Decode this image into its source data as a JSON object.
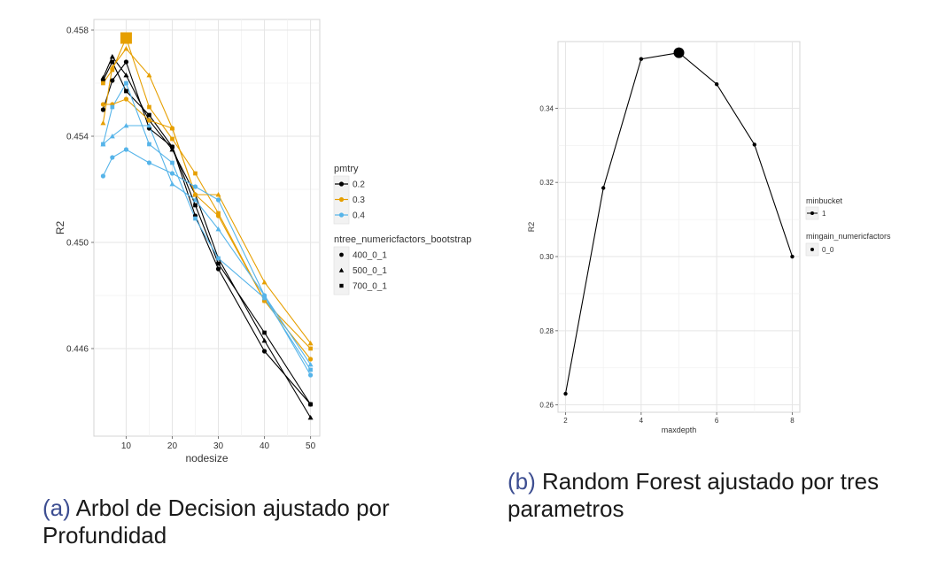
{
  "figure_a": {
    "caption_letter": "(a)",
    "caption_text": "Arbol de Decision ajustado por Profundidad"
  },
  "figure_b": {
    "caption_letter": "(b)",
    "caption_text": "Random Forest ajustado por tres parametros"
  },
  "chart_data": [
    {
      "type": "line",
      "title": "",
      "xlabel": "nodesize",
      "ylabel": "R2",
      "xlim": [
        3,
        52
      ],
      "ylim": [
        0.4427,
        0.4584
      ],
      "x_ticks": [
        10,
        20,
        30,
        40,
        50
      ],
      "y_ticks": [
        0.446,
        0.45,
        0.454,
        0.458
      ],
      "grid": true,
      "x": [
        5,
        7,
        10,
        15,
        20,
        25,
        30,
        40,
        50
      ],
      "color_legend_title": "pmtry",
      "color_legend": [
        {
          "label": "0.2",
          "color": "#000000"
        },
        {
          "label": "0.3",
          "color": "#e69f00"
        },
        {
          "label": "0.4",
          "color": "#56b4e9"
        }
      ],
      "shape_legend_title": "ntree_numericfactors_bootstrap",
      "shape_legend": [
        {
          "label": "400_0_1",
          "shape": "circle"
        },
        {
          "label": "500_0_1",
          "shape": "triangle"
        },
        {
          "label": "700_0_1",
          "shape": "square"
        }
      ],
      "legend_position": "right",
      "highlight": {
        "x": 10,
        "y": 0.4577,
        "color": "#e69f00",
        "shape": "square"
      },
      "series": [
        {
          "color": "#000000",
          "shape": "circle",
          "values": [
            0.455,
            0.4561,
            0.4568,
            0.4543,
            0.4536,
            0.451,
            0.449,
            0.4459,
            0.4439
          ]
        },
        {
          "color": "#000000",
          "shape": "triangle",
          "values": [
            0.4562,
            0.457,
            0.4563,
            0.4546,
            0.4535,
            0.4518,
            0.4494,
            0.4463,
            0.4434
          ]
        },
        {
          "color": "#000000",
          "shape": "square",
          "values": [
            0.4561,
            0.4568,
            0.4557,
            0.4548,
            0.4536,
            0.4514,
            0.4492,
            0.4466,
            0.4439
          ]
        },
        {
          "color": "#e69f00",
          "shape": "circle",
          "values": [
            0.4552,
            0.4552,
            0.4554,
            0.4546,
            0.4543,
            0.4518,
            0.451,
            0.4478,
            0.4456
          ]
        },
        {
          "color": "#e69f00",
          "shape": "triangle",
          "values": [
            0.4545,
            0.4566,
            0.4573,
            0.4563,
            0.4543,
            0.4518,
            0.4518,
            0.4485,
            0.4462
          ]
        },
        {
          "color": "#e69f00",
          "shape": "square",
          "values": [
            0.456,
            0.4565,
            0.4577,
            0.4551,
            0.4539,
            0.4526,
            0.4511,
            0.4478,
            0.446
          ]
        },
        {
          "color": "#56b4e9",
          "shape": "circle",
          "values": [
            0.4525,
            0.4532,
            0.4535,
            0.453,
            0.4526,
            0.4521,
            0.4516,
            0.448,
            0.445
          ]
        },
        {
          "color": "#56b4e9",
          "shape": "triangle",
          "values": [
            0.4537,
            0.454,
            0.4544,
            0.4544,
            0.4522,
            0.4516,
            0.4505,
            0.448,
            0.4454
          ]
        },
        {
          "color": "#56b4e9",
          "shape": "square",
          "values": [
            0.4537,
            0.4551,
            0.456,
            0.4537,
            0.453,
            0.4509,
            0.4494,
            0.4479,
            0.4452
          ]
        }
      ]
    },
    {
      "type": "line",
      "title": "",
      "xlabel": "maxdepth",
      "ylabel": "R2",
      "xlim": [
        1.8,
        8.2
      ],
      "ylim": [
        0.258,
        0.358
      ],
      "x_ticks": [
        2,
        4,
        6,
        8
      ],
      "y_ticks": [
        0.26,
        0.28,
        0.3,
        0.32,
        0.34
      ],
      "grid": true,
      "x": [
        2,
        3,
        4,
        5,
        6,
        7,
        8
      ],
      "legend_position": "right",
      "legends": [
        {
          "title": "minbucket",
          "label": "1",
          "key": "line-point"
        },
        {
          "title": "mingain_numericfactors",
          "label": "0_0",
          "key": "point"
        }
      ],
      "highlight": {
        "x": 5,
        "y": 0.355
      },
      "series": [
        {
          "color": "#000000",
          "values": [
            0.263,
            0.3185,
            0.3533,
            0.355,
            0.3465,
            0.3302,
            0.3
          ]
        }
      ]
    }
  ]
}
